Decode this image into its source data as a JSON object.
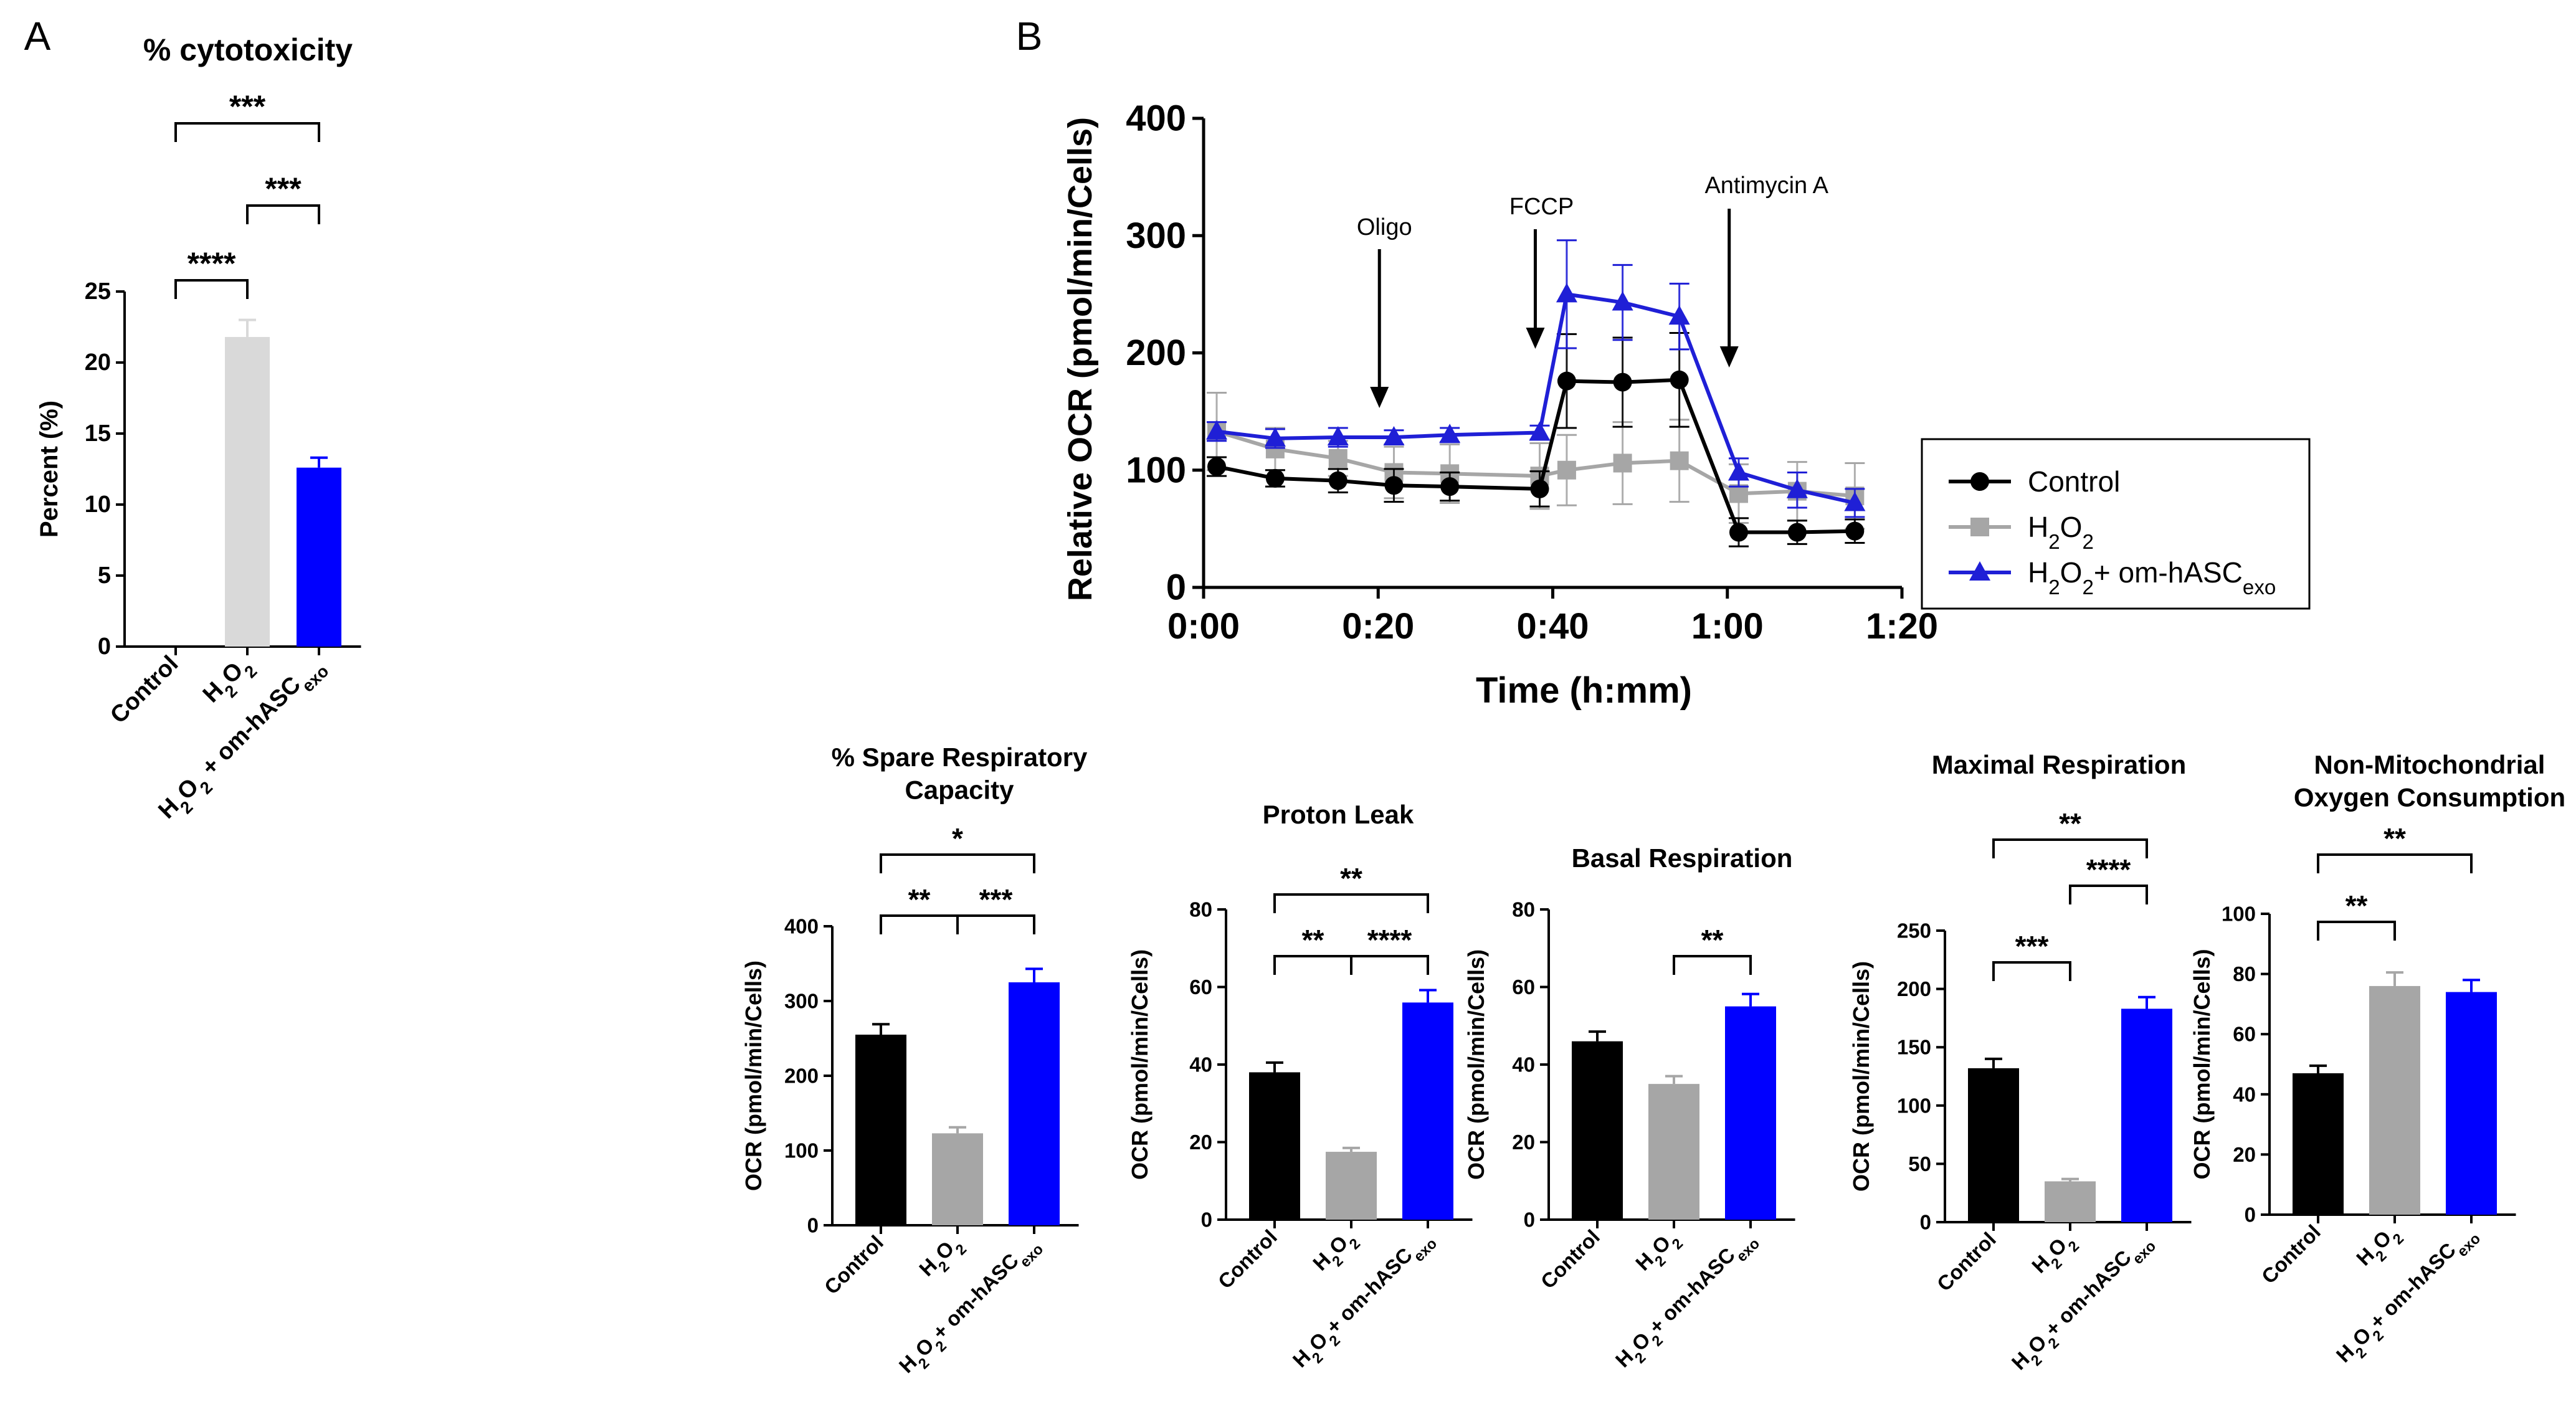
{
  "panel_labels": {
    "a": "A",
    "b": "B"
  },
  "colors": {
    "control": "#000000",
    "h2o2_light": "#d9d9d9",
    "h2o2": "#a6a6a6",
    "exo": "#0000ff",
    "exo_line": "#1f1fd6"
  },
  "chart_data": [
    {
      "id": "cytotoxicity",
      "type": "bar",
      "title": "% cytotoxicity",
      "ylabel": "Percent (%)",
      "ylim": [
        0,
        25
      ],
      "yticks": [
        "0",
        "5",
        "10",
        "15",
        "20",
        "25"
      ],
      "categories": [
        "Control",
        "H2O2",
        "H2O2 + om-hASCexo"
      ],
      "values": [
        0,
        21.8,
        12.6
      ],
      "errors": [
        0,
        1.2,
        0.7
      ],
      "significance": [
        {
          "pair": [
            0,
            2
          ],
          "label": "***"
        },
        {
          "pair": [
            1,
            2
          ],
          "label": "***"
        },
        {
          "pair": [
            0,
            1
          ],
          "label": "****"
        }
      ]
    },
    {
      "id": "ocr",
      "type": "line",
      "xlabel": "Time (h:mm)",
      "ylabel": "Relative OCR (pmol/min/Cells)",
      "xlim": [
        0,
        80
      ],
      "ylim": [
        0,
        400
      ],
      "xticks": [
        "0:00",
        "0:20",
        "0:40",
        "1:00",
        "1:20"
      ],
      "yticks": [
        "0",
        "100",
        "200",
        "300",
        "400"
      ],
      "annotations": [
        {
          "label": "Oligo",
          "x": 19
        },
        {
          "label": "FCCP",
          "x": 38
        },
        {
          "label": "Antimycin A",
          "x": 57
        }
      ],
      "series": [
        {
          "name": "Control",
          "marker": "circle",
          "x": [
            1.5,
            8.2,
            15.4,
            21.8,
            28.2,
            38.5,
            41.6,
            48,
            54.5,
            61.3,
            68,
            74.6
          ],
          "values": [
            103,
            93,
            91,
            87,
            86,
            84,
            176,
            175,
            177,
            47,
            47,
            48
          ],
          "errors": [
            8,
            7,
            10,
            14,
            12,
            15,
            40,
            38,
            40,
            12,
            10,
            10
          ]
        },
        {
          "name": "H2O2",
          "marker": "square",
          "x": [
            1.5,
            8.2,
            15.4,
            21.8,
            28.2,
            38.5,
            41.6,
            48,
            54.5,
            61.3,
            68,
            74.6
          ],
          "values": [
            133,
            118,
            110,
            98,
            97,
            95,
            100,
            106,
            108,
            80,
            82,
            78
          ],
          "errors": [
            33,
            18,
            15,
            22,
            25,
            28,
            30,
            35,
            35,
            25,
            25,
            28
          ]
        },
        {
          "name": "H2O2+ om-hASCexo",
          "marker": "triangle",
          "x": [
            1.5,
            8.2,
            15.4,
            21.8,
            28.2,
            38.5,
            41.6,
            48,
            54.5,
            61.3,
            68,
            74.6
          ],
          "values": [
            133,
            127,
            128,
            128,
            130,
            132,
            250,
            243,
            231,
            98,
            83,
            72
          ],
          "errors": [
            8,
            8,
            8,
            6,
            6,
            6,
            46,
            32,
            28,
            12,
            15,
            12
          ]
        }
      ]
    },
    {
      "id": "spare",
      "type": "bar",
      "title": "% Spare Respiratory Capacity",
      "ylabel": "OCR (pmol/min/Cells)",
      "ylim": [
        0,
        400
      ],
      "yticks": [
        "0",
        "100",
        "200",
        "300",
        "400"
      ],
      "categories": [
        "Control",
        "H2O2",
        "H2O2+ om-hASCexo"
      ],
      "values": [
        255,
        123,
        325
      ],
      "errors": [
        14,
        8,
        18
      ],
      "significance": [
        {
          "pair": [
            0,
            2
          ],
          "label": "*"
        },
        {
          "pair": [
            0,
            1
          ],
          "label": "**"
        },
        {
          "pair": [
            1,
            2
          ],
          "label": "***"
        }
      ]
    },
    {
      "id": "proton",
      "type": "bar",
      "title": "Proton Leak",
      "ylabel": "OCR (pmol/min/Cells)",
      "ylim": [
        0,
        80
      ],
      "yticks": [
        "0",
        "20",
        "40",
        "60",
        "80"
      ],
      "categories": [
        "Control",
        "H2O2",
        "H2O2+ om-hASCexo"
      ],
      "values": [
        38,
        17.5,
        56
      ],
      "errors": [
        2.5,
        1,
        3.2
      ],
      "significance": [
        {
          "pair": [
            0,
            2
          ],
          "label": "**"
        },
        {
          "pair": [
            0,
            1
          ],
          "label": "**"
        },
        {
          "pair": [
            1,
            2
          ],
          "label": "****"
        }
      ]
    },
    {
      "id": "basal",
      "type": "bar",
      "title": "Basal Respiration",
      "ylabel": "OCR (pmol/min/Cells)",
      "ylim": [
        0,
        80
      ],
      "yticks": [
        "0",
        "20",
        "40",
        "60",
        "80"
      ],
      "categories": [
        "Control",
        "H2O2",
        "H2O2+ om-hASCexo"
      ],
      "values": [
        46,
        35,
        55
      ],
      "errors": [
        2.5,
        2,
        3.2
      ],
      "significance": [
        {
          "pair": [
            1,
            2
          ],
          "label": "**"
        }
      ]
    },
    {
      "id": "maximal",
      "type": "bar",
      "title": "Maximal Respiration",
      "ylabel": "OCR (pmol/min/Cells)",
      "ylim": [
        0,
        250
      ],
      "yticks": [
        "0",
        "50",
        "100",
        "150",
        "200",
        "250"
      ],
      "categories": [
        "Control",
        "H2O2",
        "H2O2+ om-hASCexo"
      ],
      "values": [
        132,
        35,
        183
      ],
      "errors": [
        8,
        2,
        10
      ],
      "significance": [
        {
          "pair": [
            0,
            2
          ],
          "label": "**"
        },
        {
          "pair": [
            1,
            2
          ],
          "label": "****"
        },
        {
          "pair": [
            0,
            1
          ],
          "label": "***"
        }
      ]
    },
    {
      "id": "nonmito",
      "type": "bar",
      "title": "Non-Mitochondrial Oxygen Consumption",
      "ylabel": "OCR (pmol/min/Cells)",
      "ylim": [
        0,
        100
      ],
      "yticks": [
        "0",
        "20",
        "40",
        "60",
        "80",
        "100"
      ],
      "categories": [
        "Control",
        "H2O2",
        "H2O2+ om-hASCexo"
      ],
      "values": [
        47,
        76,
        74
      ],
      "errors": [
        2.5,
        4.5,
        4
      ],
      "significance": [
        {
          "pair": [
            0,
            2
          ],
          "label": "**"
        },
        {
          "pair": [
            0,
            1
          ],
          "label": "**"
        }
      ]
    }
  ]
}
